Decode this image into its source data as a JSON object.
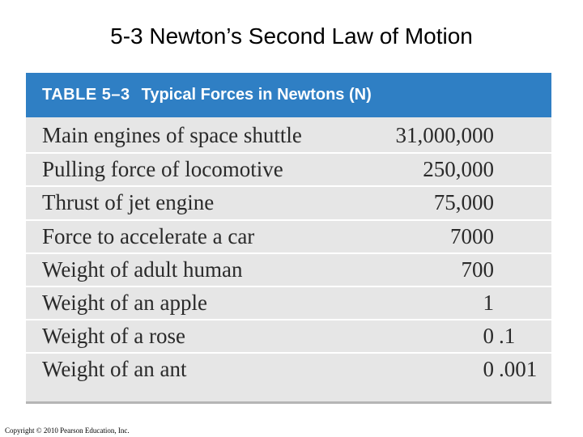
{
  "slide": {
    "title": "5-3 Newton’s Second Law of Motion",
    "copyright": "Copyright © 2010 Pearson Education, Inc."
  },
  "table": {
    "number": "TABLE 5–3",
    "caption": "Typical Forces in Newtons (N)",
    "header_color": "#2f7fc4",
    "body_color": "#e6e6e6",
    "rows": [
      {
        "label": "Main engines of space shuttle",
        "value": "31,000,000",
        "decimal": ""
      },
      {
        "label": "Pulling force of locomotive",
        "value": "250,000",
        "decimal": ""
      },
      {
        "label": "Thrust of jet engine",
        "value": "75,000",
        "decimal": ""
      },
      {
        "label": "Force to accelerate a car",
        "value": "7000",
        "decimal": ""
      },
      {
        "label": "Weight of adult human",
        "value": "700",
        "decimal": ""
      },
      {
        "label": "Weight of an apple",
        "value": "1",
        "decimal": ""
      },
      {
        "label": "Weight of a rose",
        "value": "0",
        "decimal": ".1"
      },
      {
        "label": "Weight of an ant",
        "value": "0",
        "decimal": ".001"
      }
    ]
  }
}
